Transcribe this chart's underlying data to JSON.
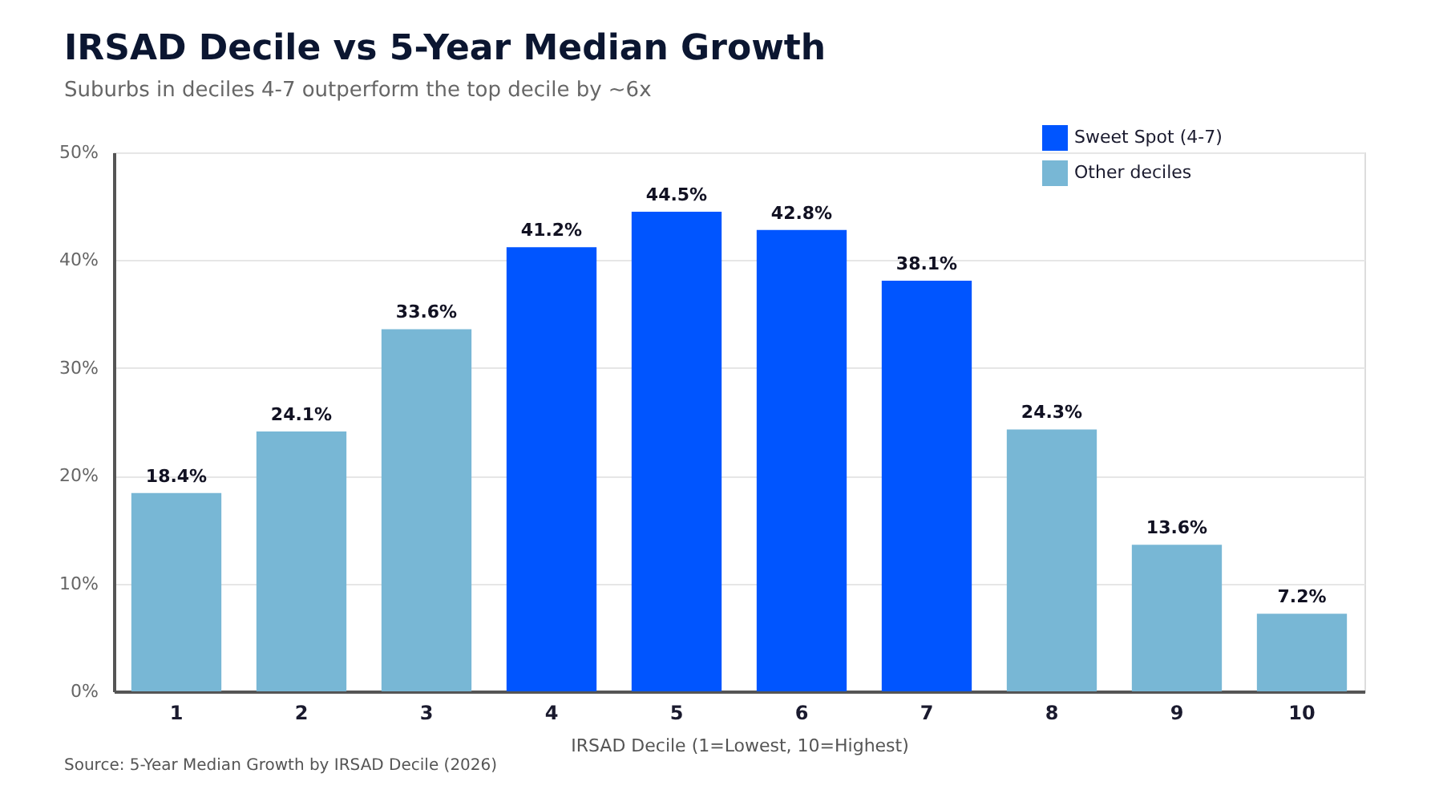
{
  "chart_data": {
    "type": "bar",
    "title": "IRSAD Decile vs 5-Year Median Growth",
    "subtitle": "Suburbs in deciles 4-7 outperform the top decile by ~6x",
    "xlabel": "IRSAD Decile (1=Lowest, 10=Highest)",
    "categories": [
      "1",
      "2",
      "3",
      "4",
      "5",
      "6",
      "7",
      "8",
      "9",
      "10"
    ],
    "series": [
      {
        "name": "Sweet Spot (4-7)",
        "color": "#0055ff",
        "values": [
          null,
          null,
          null,
          41.2,
          44.5,
          42.8,
          38.1,
          null,
          null,
          null
        ],
        "value_labels": [
          null,
          null,
          null,
          "41.2%",
          "44.5%",
          "42.8%",
          "38.1%",
          null,
          null,
          null
        ]
      },
      {
        "name": "Other deciles",
        "color": "#78b7d5",
        "values": [
          18.4,
          24.1,
          33.6,
          null,
          null,
          null,
          null,
          24.3,
          13.6,
          7.2
        ],
        "value_labels": [
          "18.4%",
          "24.1%",
          "33.6%",
          null,
          null,
          null,
          null,
          "24.3%",
          "13.6%",
          "7.2%"
        ]
      }
    ],
    "ylim": [
      0,
      50
    ],
    "yticks": [
      {
        "value": 0,
        "label": "0%"
      },
      {
        "value": 10,
        "label": "10%"
      },
      {
        "value": 20,
        "label": "20%"
      },
      {
        "value": 30,
        "label": "30%"
      },
      {
        "value": 40,
        "label": "40%"
      },
      {
        "value": 50,
        "label": "50%"
      }
    ],
    "grid": "y",
    "legend": "top right",
    "annotations": [
      "Source: 5-Year Median Growth by IRSAD Decile (2026)"
    ]
  }
}
